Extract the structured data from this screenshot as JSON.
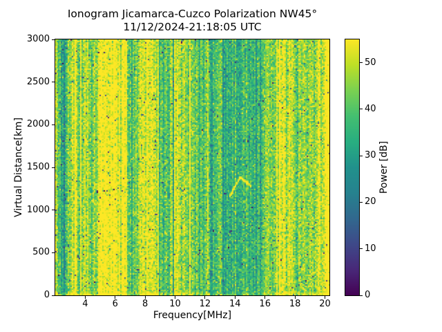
{
  "title": {
    "line1": "Ionogram Jicamarca-Cuzco Polarization NW45°",
    "line2": "11/12/2024-21:18:05 UTC"
  },
  "axes": {
    "xlabel": "Frequency[MHz]",
    "ylabel": "Virtual Distance[km]"
  },
  "chart_data": {
    "type": "heatmap",
    "title": "Ionogram Jicamarca-Cuzco Polarization NW45° 11/12/2024-21:18:05 UTC",
    "xlabel": "Frequency[MHz]",
    "ylabel": "Virtual Distance[km]",
    "xlim": [
      2.0,
      20.3
    ],
    "ylim": [
      0,
      3000
    ],
    "xticks": [
      4,
      6,
      8,
      10,
      12,
      14,
      16,
      18,
      20
    ],
    "yticks": [
      0,
      500,
      1000,
      1500,
      2000,
      2500,
      3000
    ],
    "grid": false,
    "colorbar": {
      "label": "Power [dB]",
      "ticks": [
        0,
        10,
        20,
        30,
        40,
        50
      ],
      "vmin": 0,
      "vmax": 55,
      "colormap": "viridis",
      "color_stops": [
        "#440154",
        "#482878",
        "#3e4989",
        "#31688e",
        "#26828e",
        "#21918c",
        "#28ae80",
        "#44bf70",
        "#7ad151",
        "#bddf26",
        "#fde725"
      ]
    },
    "power_profile_dB": [
      {
        "f_start": 2.0,
        "f_end": 2.35,
        "mean_dB": 41
      },
      {
        "f_start": 2.35,
        "f_end": 2.85,
        "mean_dB": 33
      },
      {
        "f_start": 2.85,
        "f_end": 3.15,
        "mean_dB": 43
      },
      {
        "f_start": 3.15,
        "f_end": 4.25,
        "mean_dB": 51
      },
      {
        "f_start": 4.25,
        "f_end": 4.85,
        "mean_dB": 42
      },
      {
        "f_start": 4.85,
        "f_end": 6.75,
        "mean_dB": 57
      },
      {
        "f_start": 6.75,
        "f_end": 7.6,
        "mean_dB": 43
      },
      {
        "f_start": 7.6,
        "f_end": 8.95,
        "mean_dB": 53
      },
      {
        "f_start": 8.95,
        "f_end": 9.9,
        "mean_dB": 42
      },
      {
        "f_start": 9.9,
        "f_end": 10.65,
        "mean_dB": 51
      },
      {
        "f_start": 10.65,
        "f_end": 11.45,
        "mean_dB": 45
      },
      {
        "f_start": 11.45,
        "f_end": 12.25,
        "mean_dB": 41
      },
      {
        "f_start": 12.25,
        "f_end": 13.15,
        "mean_dB": 39
      },
      {
        "f_start": 13.15,
        "f_end": 14.95,
        "mean_dB": 34
      },
      {
        "f_start": 14.95,
        "f_end": 15.9,
        "mean_dB": 37
      },
      {
        "f_start": 15.9,
        "f_end": 16.7,
        "mean_dB": 44
      },
      {
        "f_start": 16.7,
        "f_end": 17.85,
        "mean_dB": 51
      },
      {
        "f_start": 17.85,
        "f_end": 18.45,
        "mean_dB": 45
      },
      {
        "f_start": 18.45,
        "f_end": 19.55,
        "mean_dB": 46
      },
      {
        "f_start": 19.55,
        "f_end": 20.3,
        "mean_dB": 56
      }
    ],
    "noise": {
      "cell_sd_dB": 5.5,
      "column_sd_dB": 3.5,
      "bright_column_prob": 0.06,
      "bright_column_boost_dB": 9,
      "dark_column_prob": 0.06,
      "dark_column_drop_dB": 9,
      "speckle_prob": 0.012,
      "speckle_mean_dB": 12,
      "seed": 7
    },
    "ground_clutter": {
      "alt_max_km": 35,
      "boost_dB": 5
    },
    "echo_trace": [
      {
        "f0": 13.6,
        "h0": 1180,
        "f1": 14.3,
        "h1": 1400,
        "boost_dB": 7
      },
      {
        "f0": 14.3,
        "h0": 1400,
        "f1": 15.0,
        "h1": 1300,
        "boost_dB": 5
      }
    ]
  }
}
